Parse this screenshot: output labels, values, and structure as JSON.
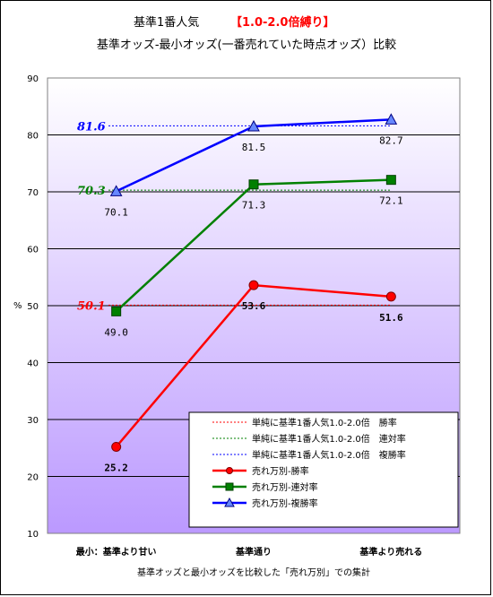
{
  "chart_data": {
    "type": "line",
    "title_line1": "基準1番人気",
    "title_highlight": "【1.0-2.0倍縛り】",
    "title_line2": "基準オッズ-最小オッズ(一番売れていた時点オッズ）比較",
    "ylabel": "%",
    "xlabel": "基準オッズと最小オッズを比較した「売れ万別」での集計",
    "ylim": [
      10,
      90
    ],
    "yticks": [
      10,
      20,
      30,
      40,
      50,
      60,
      70,
      80,
      90
    ],
    "grid": true,
    "categories": [
      "最小：基準より甘い",
      "基準通り",
      "基準より売れる"
    ],
    "series": [
      {
        "name": "売れ万別-勝率",
        "color": "#ff0000",
        "marker": "circle",
        "values": [
          25.2,
          53.6,
          51.6
        ],
        "labels": [
          "25.2",
          "53.6",
          "51.6"
        ]
      },
      {
        "name": "売れ万別-連対率",
        "color": "#008000",
        "marker": "square",
        "values": [
          49.0,
          71.3,
          72.1
        ],
        "labels": [
          "49.0",
          "71.3",
          "72.1"
        ]
      },
      {
        "name": "売れ万別-複勝率",
        "color": "#0000ff",
        "marker": "triangle",
        "values": [
          70.1,
          81.5,
          82.7
        ],
        "labels": [
          "70.1",
          "81.5",
          "82.7"
        ]
      }
    ],
    "reference_lines": [
      {
        "name": "単純に基準1番人気1.0-2.0倍　勝率",
        "value": 50.1,
        "label": "50.1",
        "color": "#ff0000"
      },
      {
        "name": "単純に基準1番人気1.0-2.0倍　連対率",
        "value": 70.3,
        "label": "70.3",
        "color": "#008000"
      },
      {
        "name": "単純に基準1番人気1.0-2.0倍　複勝率",
        "value": 81.6,
        "label": "81.6",
        "color": "#0000ff"
      }
    ],
    "legend_position": "bottom-right",
    "background_gradient": [
      "#ffffff",
      "#bb99ff"
    ]
  }
}
